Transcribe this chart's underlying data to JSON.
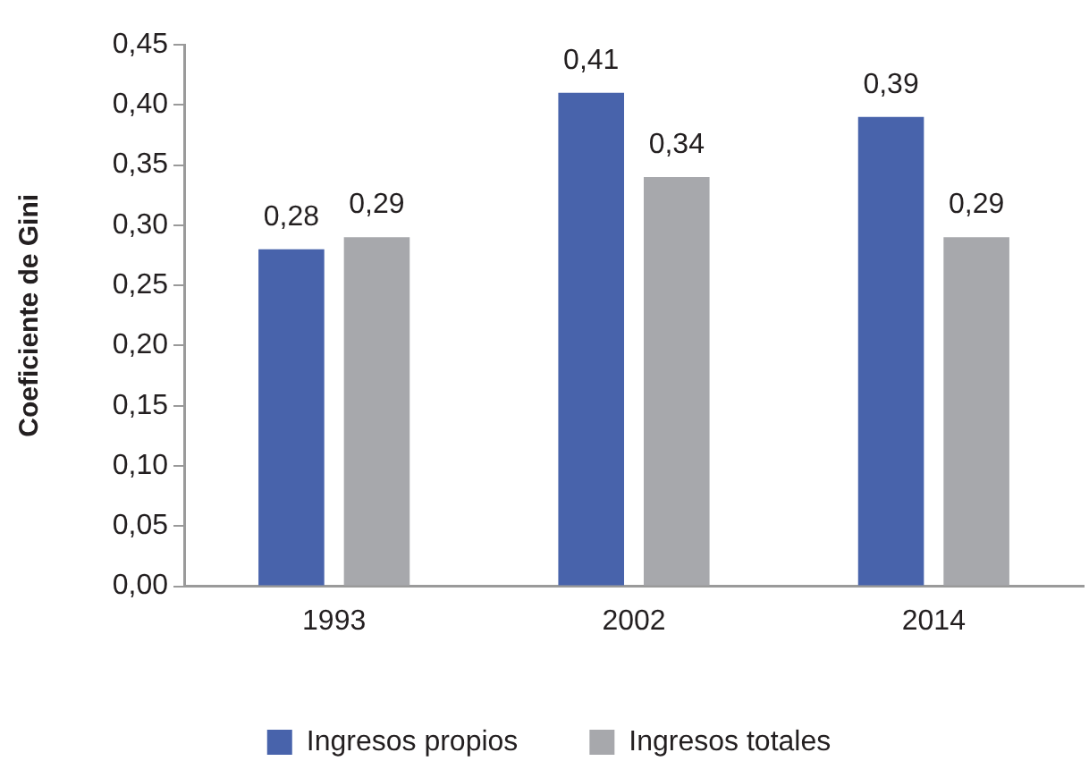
{
  "chart_data": {
    "type": "bar",
    "ylabel": "Coeficiente de Gini",
    "categories": [
      "1993",
      "2002",
      "2014"
    ],
    "series": [
      {
        "name": "Ingresos propios",
        "color": "#4863ab",
        "values": [
          0.28,
          0.41,
          0.39
        ],
        "value_labels": [
          "0,28",
          "0,41",
          "0,39"
        ]
      },
      {
        "name": "Ingresos totales",
        "color": "#a7a8ac",
        "values": [
          0.29,
          0.34,
          0.29
        ],
        "value_labels": [
          "0,29",
          "0,34",
          "0,29"
        ]
      }
    ],
    "ylim": [
      0,
      0.45
    ],
    "yticks": [
      {
        "value": 0,
        "label": "0,00"
      },
      {
        "value": 0.05,
        "label": "0,05"
      },
      {
        "value": 0.1,
        "label": "0,10"
      },
      {
        "value": 0.15,
        "label": "0,15"
      },
      {
        "value": 0.2,
        "label": "0,20"
      },
      {
        "value": 0.25,
        "label": "0,25"
      },
      {
        "value": 0.3,
        "label": "0,30"
      },
      {
        "value": 0.35,
        "label": "0,35"
      },
      {
        "value": 0.4,
        "label": "0,40"
      },
      {
        "value": 0.45,
        "label": "0,45"
      }
    ],
    "legend": "bottom"
  }
}
